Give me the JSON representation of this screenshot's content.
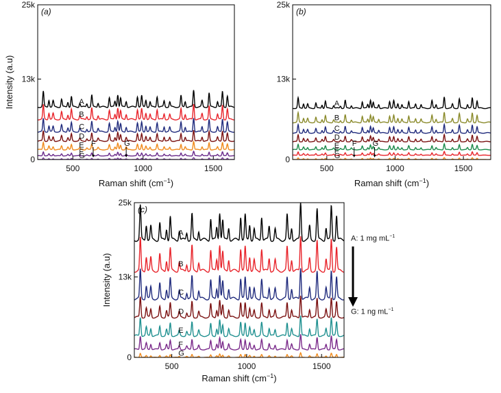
{
  "figure": {
    "side_annotation": {
      "top_text": "A: 1 mg mL",
      "top_sup": "−1",
      "bottom_text": "G: 1 ng mL",
      "bottom_sup": "−1"
    }
  },
  "chart_data": [
    {
      "type": "line",
      "panel_label": "(a)",
      "xlabel": "Raman shift (cm",
      "xlabel_sup": "−1",
      "xlabel_tail": ")",
      "ylabel": "Intensity (a.u)",
      "xlim": [
        250,
        1650
      ],
      "ylim": [
        0,
        25000
      ],
      "xticks": [
        500,
        1000,
        1500
      ],
      "xtick_labels": [
        "500",
        "1000",
        "1500"
      ],
      "yticks": [
        0,
        13000,
        25000
      ],
      "ytick_labels": [
        "0",
        "13k",
        "25k"
      ],
      "peak_markers": [
        {
          "label": "F",
          "x": 645
        },
        {
          "label": "G",
          "x": 880
        }
      ],
      "series": [
        {
          "name": "A",
          "color": "#000000",
          "baseline": 8500,
          "scale": 0.45
        },
        {
          "name": "B",
          "color": "#e8232a",
          "baseline": 6500,
          "scale": 0.42
        },
        {
          "name": "C",
          "color": "#1f2a7c",
          "baseline": 4500,
          "scale": 0.38
        },
        {
          "name": "D",
          "color": "#7a1010",
          "baseline": 3000,
          "scale": 0.3
        },
        {
          "name": "E",
          "color": "#f08a1c",
          "baseline": 1600,
          "scale": 0.22
        },
        {
          "name": "F",
          "color": "#6a2a8a",
          "baseline": 600,
          "scale": 0.12
        },
        {
          "name": "G",
          "color": "#7a3a9a",
          "baseline": 0,
          "scale": 0.05
        }
      ]
    },
    {
      "type": "line",
      "panel_label": "(b)",
      "xlabel": "Raman shift (cm",
      "xlabel_sup": "−1",
      "xlabel_tail": ")",
      "ylabel": "",
      "xlim": [
        250,
        1700
      ],
      "ylim": [
        0,
        25000
      ],
      "xticks": [
        500,
        1000,
        1500
      ],
      "xtick_labels": [
        "500",
        "1000",
        "1500"
      ],
      "yticks": [
        0,
        13000,
        25000
      ],
      "ytick_labels": [
        "0",
        "13k",
        "25k"
      ],
      "peak_markers": [
        {
          "label": "F",
          "x": 700
        },
        {
          "label": "G",
          "x": 850
        }
      ],
      "series": [
        {
          "name": "A",
          "color": "#000000",
          "baseline": 8300,
          "scale": 0.3
        },
        {
          "name": "B",
          "color": "#8a8a2a",
          "baseline": 6000,
          "scale": 0.28
        },
        {
          "name": "C",
          "color": "#1f2a7c",
          "baseline": 4300,
          "scale": 0.24
        },
        {
          "name": "D",
          "color": "#7a1010",
          "baseline": 2900,
          "scale": 0.2
        },
        {
          "name": "E",
          "color": "#1a8a4a",
          "baseline": 1600,
          "scale": 0.16
        },
        {
          "name": "F",
          "color": "#e8232a",
          "baseline": 700,
          "scale": 0.1
        },
        {
          "name": "G",
          "color": "#f08a1c",
          "baseline": 0,
          "scale": 0.05
        }
      ]
    },
    {
      "type": "line",
      "panel_label": "(c)",
      "xlabel": "Raman shift (cm",
      "xlabel_sup": "−1",
      "xlabel_tail": ")",
      "ylabel": "Intensity (a.u)",
      "xlim": [
        250,
        1650
      ],
      "ylim": [
        0,
        25000
      ],
      "xticks": [
        500,
        1000,
        1500
      ],
      "xtick_labels": [
        "500",
        "1000",
        "1500"
      ],
      "yticks": [
        0,
        13000,
        25000
      ],
      "ytick_labels": [
        "0",
        "13k",
        "25k"
      ],
      "peak_markers": [],
      "series": [
        {
          "name": "A",
          "color": "#000000",
          "baseline": 19000,
          "scale": 1.0
        },
        {
          "name": "B",
          "color": "#e8232a",
          "baseline": 14000,
          "scale": 0.95
        },
        {
          "name": "C",
          "color": "#1f2a7c",
          "baseline": 9500,
          "scale": 0.85
        },
        {
          "name": "D",
          "color": "#7a1010",
          "baseline": 6500,
          "scale": 0.6
        },
        {
          "name": "E",
          "color": "#1f9090",
          "baseline": 3500,
          "scale": 0.55
        },
        {
          "name": "F",
          "color": "#7a2a8a",
          "baseline": 1300,
          "scale": 0.4
        },
        {
          "name": "G",
          "color": "#f08a1c",
          "baseline": 0,
          "scale": 0.12
        }
      ]
    }
  ],
  "spectrum_peaks": [
    {
      "x": 290,
      "h": 5500
    },
    {
      "x": 330,
      "h": 2500
    },
    {
      "x": 360,
      "h": 2200
    },
    {
      "x": 420,
      "h": 2800
    },
    {
      "x": 465,
      "h": 1800
    },
    {
      "x": 490,
      "h": 3800
    },
    {
      "x": 550,
      "h": 1500
    },
    {
      "x": 600,
      "h": 1200
    },
    {
      "x": 635,
      "h": 4200
    },
    {
      "x": 680,
      "h": 1500
    },
    {
      "x": 760,
      "h": 3500
    },
    {
      "x": 800,
      "h": 2000
    },
    {
      "x": 820,
      "h": 4500
    },
    {
      "x": 840,
      "h": 3200
    },
    {
      "x": 880,
      "h": 2000
    },
    {
      "x": 960,
      "h": 3800
    },
    {
      "x": 990,
      "h": 4000
    },
    {
      "x": 1020,
      "h": 2500
    },
    {
      "x": 1050,
      "h": 1800
    },
    {
      "x": 1100,
      "h": 3800
    },
    {
      "x": 1150,
      "h": 2200
    },
    {
      "x": 1190,
      "h": 1800
    },
    {
      "x": 1270,
      "h": 4000
    },
    {
      "x": 1300,
      "h": 2000
    },
    {
      "x": 1360,
      "h": 6000
    },
    {
      "x": 1420,
      "h": 2200
    },
    {
      "x": 1470,
      "h": 5000
    },
    {
      "x": 1530,
      "h": 2000
    },
    {
      "x": 1565,
      "h": 5500
    },
    {
      "x": 1600,
      "h": 4000
    }
  ]
}
